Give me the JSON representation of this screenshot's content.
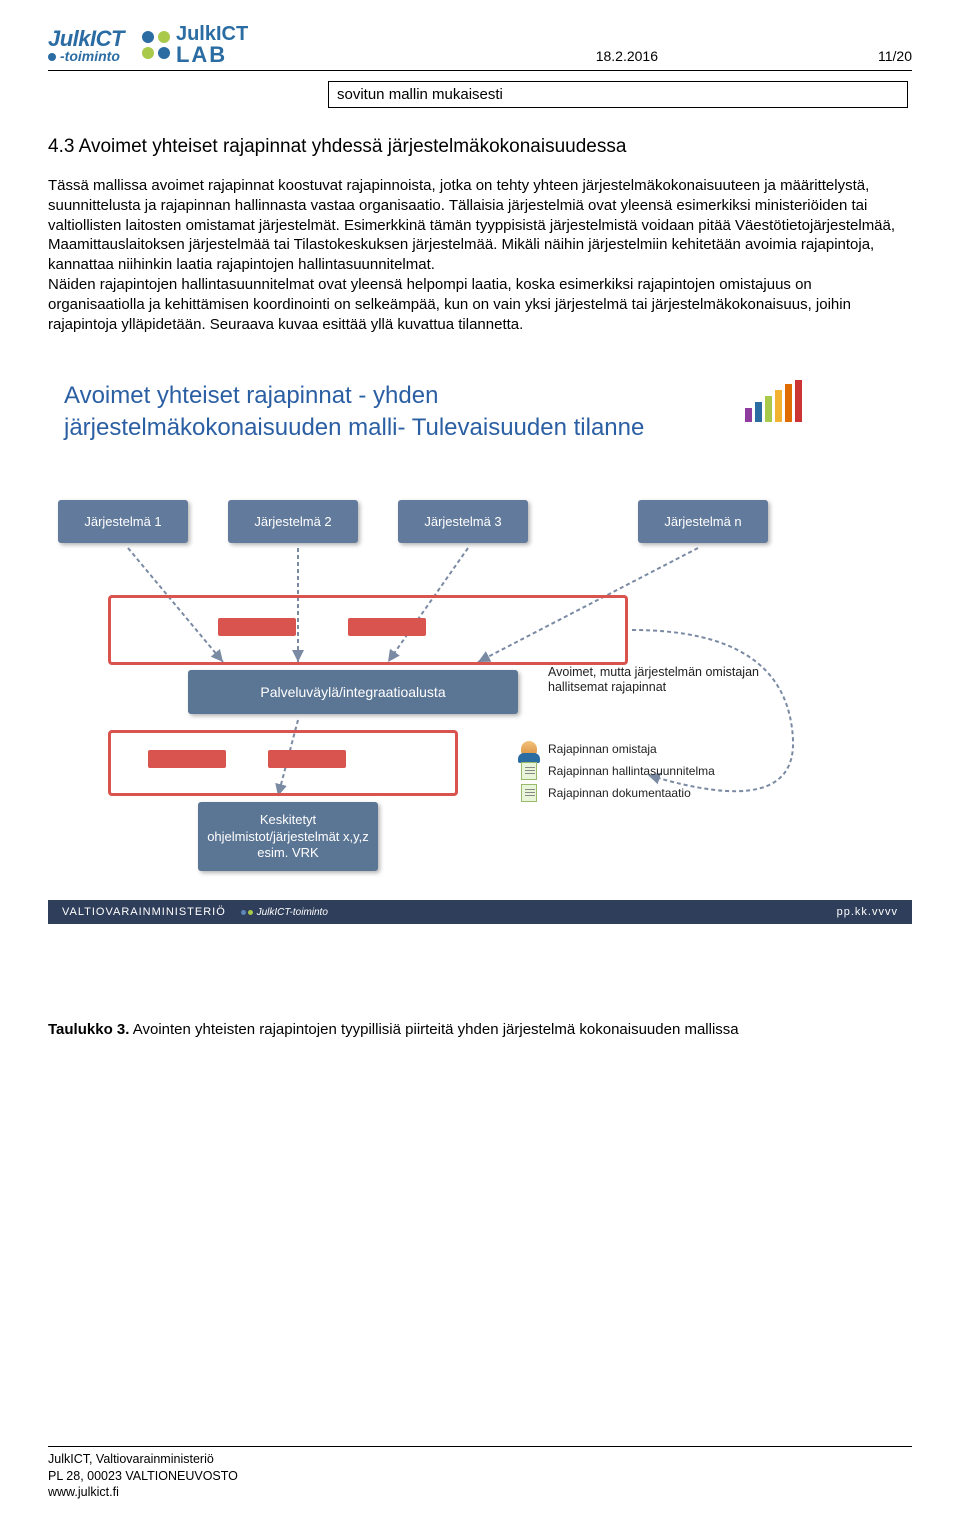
{
  "header": {
    "logo1_top": "JulkICT",
    "logo1_bottom": "-toiminto",
    "logo2_top": "JulkICT",
    "logo2_bottom": "LAB",
    "date": "18.2.2016",
    "page": "11/20"
  },
  "residual_cell": "sovitun mallin mukaisesti",
  "section_title": "4.3 Avoimet yhteiset rajapinnat yhdessä järjestelmäkokonaisuudessa",
  "body_text": "Tässä mallissa avoimet rajapinnat koostuvat rajapinnoista, jotka on tehty yhteen järjestelmäkokonaisuuteen ja määrittelystä, suunnittelusta ja rajapinnan hallinnasta vastaa organisaatio. Tällaisia järjestelmiä ovat yleensä esimerkiksi ministeriöiden tai valtiollisten laitosten omistamat järjestelmät. Esimerkkinä tämän tyyppisistä järjestelmistä voidaan pitää Väestötietojärjestelmää, Maamittauslaitoksen järjestelmää tai Tilastokeskuksen järjestelmää. Mikäli näihin järjestelmiin kehitetään avoimia rajapintoja, kannattaa niihinkin laatia rajapintojen hallintasuunnitelmat.\nNäiden rajapintojen hallintasuunnitelmat ovat yleensä helpompi laatia, koska esimerkiksi rajapintojen omistajuus on organisaatiolla ja kehittämisen koordinointi on selkeämpää, kun on vain yksi järjestelmä tai järjestelmäkokonaisuus, joihin rajapintoja ylläpidetään. Seuraava kuvaa esittää yllä kuvattua tilannetta.",
  "diagram": {
    "title": "Avoimet yhteiset rajapinnat - yhden järjestelmäkokonaisuuden malli- Tulevaisuuden tilanne",
    "systems": [
      "Järjestelmä 1",
      "Järjestelmä  2",
      "Järjestelmä  3",
      "Järjestelmä  n"
    ],
    "bus_label": "Palveluväylä/integraatioalusta",
    "note_right": "Avoimet, mutta järjestelmän omistajan hallitsemat rajapinnat",
    "legend": [
      "Rajapinnan omistaja",
      "Rajapinnan hallintasuunnitelma",
      "Rajapinnan dokumentaatio"
    ],
    "bottom_box": "Keskitetyt ohjelmistot/järjestelmät x,y,z esim. VRK",
    "footer_ministry": "VALTIOVARAINMINISTERIÖ",
    "footer_sub": "JulkICT-toiminto",
    "footer_right": "pp.kk.vvvv",
    "colors": {
      "box_bg": "#627a9b",
      "bus_bg": "#5b7594",
      "frame": "#d9534f",
      "title": "#2b5fa3",
      "footer_bg": "#2f3e5a"
    }
  },
  "caption_label": "Taulukko 3.",
  "caption_text": " Avointen yhteisten rajapintojen tyypillisiä piirteitä yhden järjestelmä kokonaisuuden mallissa",
  "footer": {
    "line1": "JulkICT, Valtiovarainministeriö",
    "line2": "PL 28, 00023 VALTIONEUVOSTO",
    "line3": "www.julkict.fi"
  }
}
